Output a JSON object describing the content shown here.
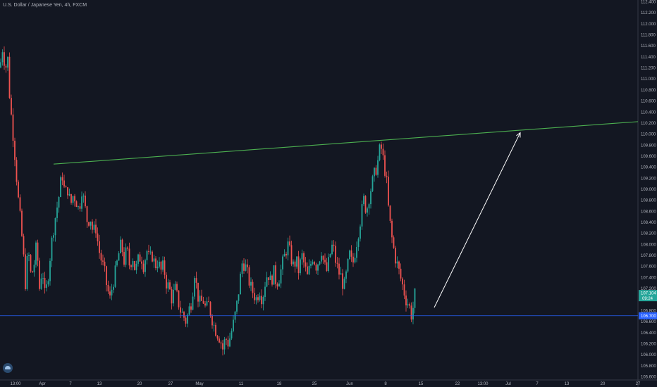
{
  "symbol_title": "U.S. Dollar / Japanese Yen, 4h, FXCM",
  "colors": {
    "background": "#131722",
    "up": "#26a69a",
    "down": "#ef5350",
    "trendline": "#4caf50",
    "arrow": "#ffffff",
    "hline": "#2962ff",
    "axis_text": "#b2b5be",
    "price_tag": "#26a69a",
    "hline_tag": "#2962ff"
  },
  "chart_data": {
    "type": "candlestick",
    "title": "U.S. Dollar / Japanese Yen, 4h, FXCM",
    "ylim": [
      105.6,
      112.4
    ],
    "y_ticks": [
      "112.400",
      "112.200",
      "112.000",
      "111.800",
      "111.600",
      "111.400",
      "111.200",
      "111.000",
      "110.800",
      "110.600",
      "110.400",
      "110.200",
      "110.000",
      "109.800",
      "109.600",
      "109.400",
      "109.200",
      "109.000",
      "108.800",
      "108.600",
      "108.400",
      "108.200",
      "108.000",
      "107.800",
      "107.600",
      "107.400",
      "107.200",
      "107.000",
      "106.800",
      "106.600",
      "106.400",
      "106.200",
      "106.000",
      "105.800",
      "105.600"
    ],
    "x_ticks": [
      "13:00",
      "Apr",
      "7",
      "13",
      "20",
      "27",
      "May",
      "11",
      "18",
      "25",
      "Jun",
      "8",
      "15",
      "22",
      "13:00",
      "Jul",
      "7",
      "13",
      "20",
      "27"
    ],
    "price_path": [
      [
        0,
        111.2
      ],
      [
        4,
        111.6
      ],
      [
        8,
        111.1
      ],
      [
        10,
        111.6
      ],
      [
        14,
        110.6
      ],
      [
        20,
        109.8
      ],
      [
        26,
        108.8
      ],
      [
        32,
        108.0
      ],
      [
        36,
        107.3
      ],
      [
        40,
        107.9
      ],
      [
        44,
        107.4
      ],
      [
        48,
        107.6
      ],
      [
        52,
        108.0
      ],
      [
        56,
        107.2
      ],
      [
        60,
        107.6
      ],
      [
        64,
        107.0
      ],
      [
        68,
        107.4
      ],
      [
        72,
        107.9
      ],
      [
        76,
        108.3
      ],
      [
        80,
        108.6
      ],
      [
        84,
        108.9
      ],
      [
        88,
        109.3
      ],
      [
        92,
        108.9
      ],
      [
        96,
        109.0
      ],
      [
        100,
        108.7
      ],
      [
        104,
        108.9
      ],
      [
        108,
        108.8
      ],
      [
        112,
        108.6
      ],
      [
        116,
        109.0
      ],
      [
        120,
        108.7
      ],
      [
        124,
        108.4
      ],
      [
        128,
        108.5
      ],
      [
        132,
        108.2
      ],
      [
        136,
        108.3
      ],
      [
        140,
        107.9
      ],
      [
        144,
        107.7
      ],
      [
        148,
        107.5
      ],
      [
        152,
        107.2
      ],
      [
        156,
        107.0
      ],
      [
        160,
        107.3
      ],
      [
        164,
        107.5
      ],
      [
        168,
        107.8
      ],
      [
        172,
        108.0
      ],
      [
        176,
        107.7
      ],
      [
        180,
        107.9
      ],
      [
        184,
        107.6
      ],
      [
        188,
        107.8
      ],
      [
        192,
        107.5
      ],
      [
        196,
        107.7
      ],
      [
        200,
        107.8
      ],
      [
        204,
        107.6
      ],
      [
        208,
        107.9
      ],
      [
        212,
        107.7
      ],
      [
        216,
        107.8
      ],
      [
        220,
        107.6
      ],
      [
        224,
        107.7
      ],
      [
        228,
        107.5
      ],
      [
        232,
        107.6
      ],
      [
        236,
        107.3
      ],
      [
        240,
        107.2
      ],
      [
        244,
        107.0
      ],
      [
        248,
        107.2
      ],
      [
        252,
        107.0
      ],
      [
        256,
        106.8
      ],
      [
        260,
        106.7
      ],
      [
        264,
        106.6
      ],
      [
        268,
        106.8
      ],
      [
        272,
        107.0
      ],
      [
        276,
        107.5
      ],
      [
        280,
        107.1
      ],
      [
        284,
        106.9
      ],
      [
        288,
        107.0
      ],
      [
        292,
        106.8
      ],
      [
        296,
        106.9
      ],
      [
        300,
        106.7
      ],
      [
        304,
        106.5
      ],
      [
        308,
        106.4
      ],
      [
        312,
        106.3
      ],
      [
        316,
        106.1
      ],
      [
        320,
        106.3
      ],
      [
        324,
        106.2
      ],
      [
        328,
        106.4
      ],
      [
        332,
        106.6
      ],
      [
        336,
        106.9
      ],
      [
        340,
        107.3
      ],
      [
        344,
        107.7
      ],
      [
        348,
        107.6
      ],
      [
        352,
        107.4
      ],
      [
        356,
        107.2
      ],
      [
        360,
        107.1
      ],
      [
        364,
        107.0
      ],
      [
        368,
        107.2
      ],
      [
        372,
        107.0
      ],
      [
        376,
        107.3
      ],
      [
        380,
        107.5
      ],
      [
        384,
        107.3
      ],
      [
        388,
        107.5
      ],
      [
        392,
        107.3
      ],
      [
        396,
        107.4
      ],
      [
        400,
        107.6
      ],
      [
        404,
        107.8
      ],
      [
        408,
        108.0
      ],
      [
        412,
        107.8
      ],
      [
        416,
        107.6
      ],
      [
        420,
        107.7
      ],
      [
        424,
        107.5
      ],
      [
        428,
        107.8
      ],
      [
        432,
        107.6
      ],
      [
        436,
        107.4
      ],
      [
        440,
        107.6
      ],
      [
        444,
        107.8
      ],
      [
        448,
        107.6
      ],
      [
        452,
        107.7
      ],
      [
        456,
        107.9
      ],
      [
        460,
        107.6
      ],
      [
        464,
        107.5
      ],
      [
        468,
        107.8
      ],
      [
        472,
        108.0
      ],
      [
        476,
        107.7
      ],
      [
        480,
        107.5
      ],
      [
        484,
        107.4
      ],
      [
        488,
        107.2
      ],
      [
        492,
        107.5
      ],
      [
        496,
        107.8
      ],
      [
        500,
        107.6
      ],
      [
        504,
        107.9
      ],
      [
        508,
        108.2
      ],
      [
        512,
        108.5
      ],
      [
        516,
        108.8
      ],
      [
        520,
        108.6
      ],
      [
        524,
        108.9
      ],
      [
        528,
        109.1
      ],
      [
        532,
        109.3
      ],
      [
        536,
        109.5
      ],
      [
        540,
        109.8
      ],
      [
        544,
        109.5
      ],
      [
        548,
        109.2
      ],
      [
        550,
        108.8
      ],
      [
        552,
        108.5
      ],
      [
        556,
        108.1
      ],
      [
        560,
        107.8
      ],
      [
        564,
        107.6
      ],
      [
        568,
        107.4
      ],
      [
        572,
        107.2
      ],
      [
        576,
        107.0
      ],
      [
        580,
        106.9
      ],
      [
        584,
        106.7
      ],
      [
        588,
        107.0
      ],
      [
        590,
        107.3
      ]
    ],
    "trendline": {
      "x1": 76,
      "y1": 109.45,
      "x2": 905,
      "y2": 110.22
    },
    "arrow": {
      "x1": 616,
      "y1": 106.85,
      "x2": 738,
      "y2": 110.02
    },
    "horizontal_line": 106.7,
    "price_labels": {
      "last_price": "107.104",
      "countdown": "09:24",
      "hline_price": "106.700"
    }
  }
}
